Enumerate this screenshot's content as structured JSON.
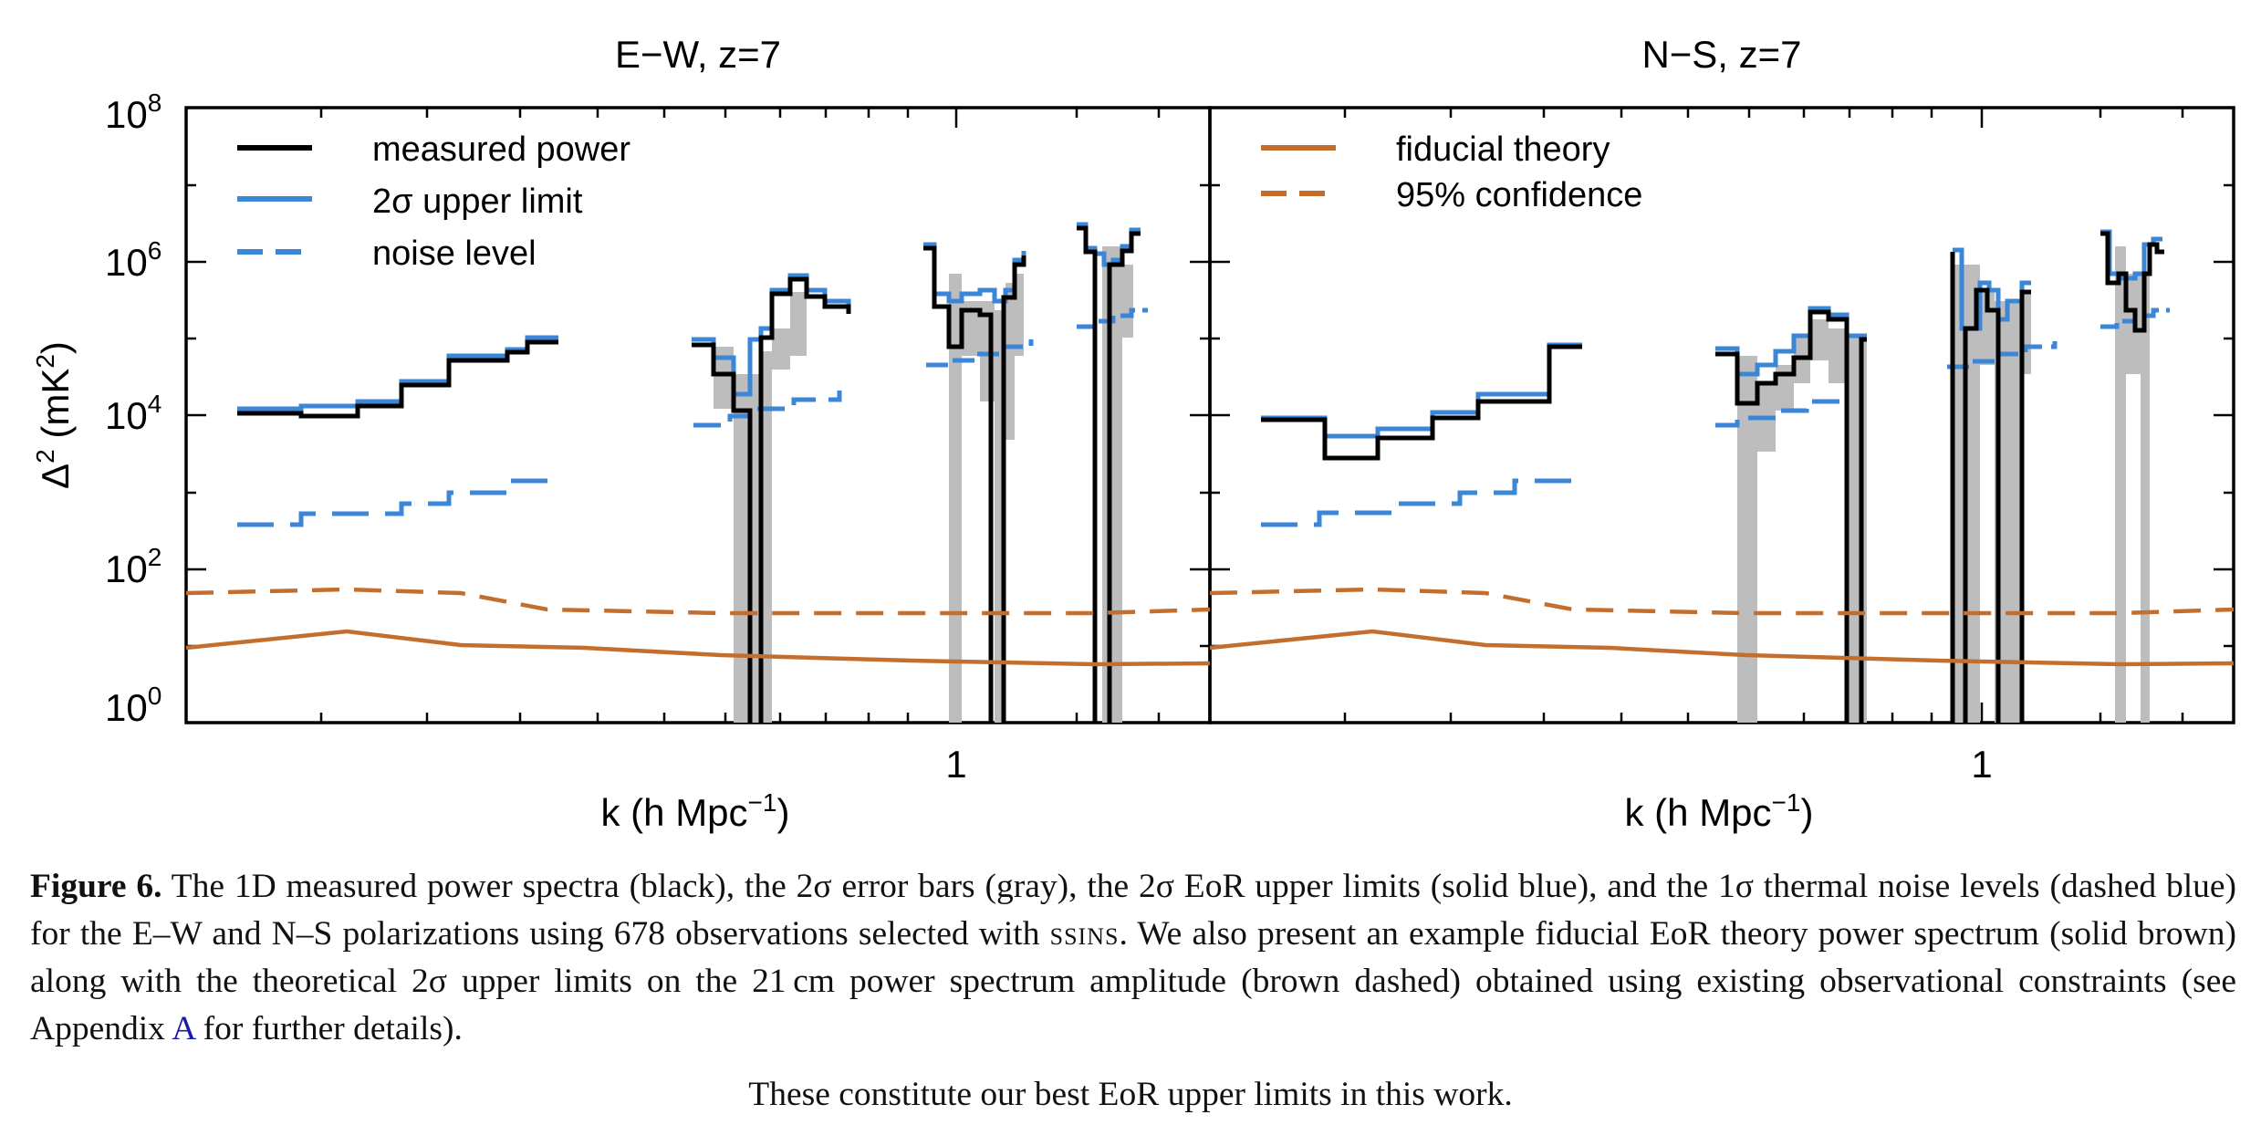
{
  "figure": {
    "panels": [
      {
        "title": "E−W, z=7",
        "legend": [
          {
            "label": "measured power",
            "style": "black-solid"
          },
          {
            "label": "2σ upper limit",
            "style": "blue-solid"
          },
          {
            "label": "noise level",
            "style": "blue-dashed"
          }
        ]
      },
      {
        "title": "N−S, z=7",
        "legend": [
          {
            "label": "fiducial theory",
            "style": "brown-solid"
          },
          {
            "label": "95% confidence",
            "style": "brown-dashed"
          }
        ]
      }
    ],
    "ylabel_main": "Δ",
    "ylabel_sup": "2",
    "ylabel_rest": " (mK",
    "ylabel_sup2": "2",
    "ylabel_end": ")",
    "xlabel_main": "k (h Mpc",
    "xlabel_sup": "−1",
    "xlabel_end": ")",
    "ytick_labels": [
      {
        "base": "10",
        "exp": "0"
      },
      {
        "base": "10",
        "exp": "2"
      },
      {
        "base": "10",
        "exp": "4"
      },
      {
        "base": "10",
        "exp": "6"
      },
      {
        "base": "10",
        "exp": "8"
      }
    ],
    "xtick_label": "1"
  },
  "chart_data": [
    {
      "type": "line",
      "title": "E−W, z=7",
      "xlabel": "k (h Mpc−1)",
      "ylabel": "Δ² (mK²)",
      "xscale": "log",
      "yscale": "log",
      "xlim": [
        0.2,
        2.0
      ],
      "ylim": [
        1,
        100000000
      ],
      "series": [
        {
          "name": "measured power",
          "style": "black-steps",
          "x": [
            0.25,
            0.28,
            0.3,
            0.34,
            0.38,
            0.45,
            0.5,
            0.55
          ],
          "y": [
            10000,
            9500,
            12000,
            22000,
            45000,
            55000,
            80000,
            80000
          ]
        },
        {
          "name": "2σ upper limit",
          "style": "blue-steps",
          "x": [
            0.25,
            0.3,
            0.38,
            0.45,
            0.5,
            0.55
          ],
          "y": [
            11000,
            13000,
            50000,
            60000,
            90000,
            90000
          ]
        },
        {
          "name": "noise level",
          "style": "blue-dashed-steps",
          "x": [
            0.25,
            0.3,
            0.38,
            0.45,
            0.55
          ],
          "y": [
            400,
            550,
            800,
            1200,
            2300
          ]
        },
        {
          "name": "fiducial theory",
          "style": "brown-solid",
          "x": [
            0.2,
            0.3,
            0.4,
            0.5,
            0.7,
            1.0,
            1.5,
            2.0
          ],
          "y": [
            8,
            13,
            8.5,
            8,
            6.5,
            5.5,
            5,
            5.5
          ]
        },
        {
          "name": "95% confidence",
          "style": "brown-dashed",
          "x": [
            0.2,
            0.3,
            0.4,
            0.5,
            0.7,
            1.0,
            1.5,
            2.0
          ],
          "y": [
            45,
            50,
            45,
            25,
            25,
            25,
            25,
            28
          ]
        }
      ]
    },
    {
      "type": "line",
      "title": "N−S, z=7",
      "xlabel": "k (h Mpc−1)",
      "ylabel": "Δ² (mK²)",
      "xscale": "log",
      "yscale": "log",
      "xlim": [
        0.2,
        2.0
      ],
      "ylim": [
        1,
        100000000
      ],
      "series": [
        {
          "name": "measured power",
          "style": "black-steps",
          "x": [
            0.25,
            0.29,
            0.35,
            0.4,
            0.45,
            0.5,
            0.55
          ],
          "y": [
            9000,
            2500,
            4000,
            9000,
            16000,
            30000,
            80000
          ]
        },
        {
          "name": "2σ upper limit",
          "style": "blue-steps",
          "x": [
            0.25,
            0.29,
            0.35,
            0.4,
            0.45,
            0.5,
            0.55
          ],
          "y": [
            9500,
            4000,
            5000,
            10000,
            18000,
            35000,
            85000
          ]
        },
        {
          "name": "noise level",
          "style": "blue-dashed-steps",
          "x": [
            0.25,
            0.29,
            0.35,
            0.45,
            0.55
          ],
          "y": [
            350,
            500,
            700,
            1200,
            2300
          ]
        },
        {
          "name": "fiducial theory",
          "style": "brown-solid",
          "x": [
            0.2,
            0.3,
            0.4,
            0.5,
            0.7,
            1.0,
            1.5,
            2.0
          ],
          "y": [
            8,
            13,
            8.5,
            8,
            6.5,
            5.5,
            5,
            5.5
          ]
        },
        {
          "name": "95% confidence",
          "style": "brown-dashed",
          "x": [
            0.2,
            0.3,
            0.4,
            0.5,
            0.7,
            1.0,
            1.5,
            2.0
          ],
          "y": [
            45,
            50,
            45,
            25,
            25,
            25,
            25,
            28
          ]
        }
      ]
    }
  ],
  "caption": {
    "label": "Figure 6.",
    "text_1": " The 1D measured power spectra (black), the 2σ error bars (gray), the 2σ EoR upper limits (solid blue), and the 1σ thermal noise levels (dashed blue) for the E–W and N–S polarizations using 678 observations selected with ",
    "ssins": "ssins",
    "text_2": ". We also present an example fiducial EoR theory power spectrum (solid brown) along with the theoretical 2σ upper limits on the 21 cm power spectrum amplitude (brown dashed) obtained using existing observational constraints (see Appendix ",
    "appendix_link": "A",
    "text_3": " for further details).",
    "final_line": "These constitute our best EoR upper limits in this work."
  }
}
